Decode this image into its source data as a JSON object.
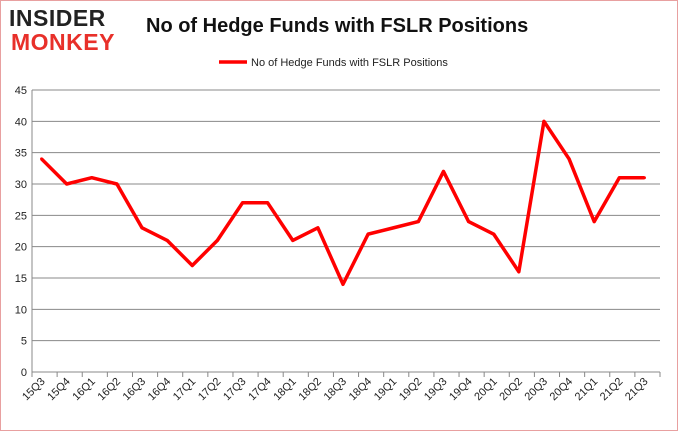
{
  "logo": {
    "line1": "INSIDER",
    "line2": "MONKEY"
  },
  "chart_data": {
    "type": "line",
    "title": "No of Hedge Funds with FSLR Positions",
    "legend": {
      "position": "top",
      "entries": [
        "No of Hedge Funds with FSLR Positions"
      ]
    },
    "categories": [
      "15Q3",
      "15Q4",
      "16Q1",
      "16Q2",
      "16Q3",
      "16Q4",
      "17Q1",
      "17Q2",
      "17Q3",
      "17Q4",
      "18Q1",
      "18Q2",
      "18Q3",
      "18Q4",
      "19Q1",
      "19Q2",
      "19Q3",
      "19Q4",
      "20Q1",
      "20Q2",
      "20Q3",
      "20Q4",
      "21Q1",
      "21Q2",
      "21Q3"
    ],
    "series": [
      {
        "name": "No of Hedge Funds with FSLR Positions",
        "color": "#ff0000",
        "values": [
          34,
          30,
          31,
          30,
          23,
          21,
          17,
          21,
          27,
          27,
          21,
          23,
          14,
          22,
          23,
          24,
          32,
          24,
          22,
          16,
          40,
          34,
          24,
          31,
          31
        ]
      }
    ],
    "ylim": [
      0,
      45
    ],
    "yticks": [
      0,
      5,
      10,
      15,
      20,
      25,
      30,
      35,
      40,
      45
    ],
    "grid": true,
    "xlabel": "",
    "ylabel": ""
  }
}
